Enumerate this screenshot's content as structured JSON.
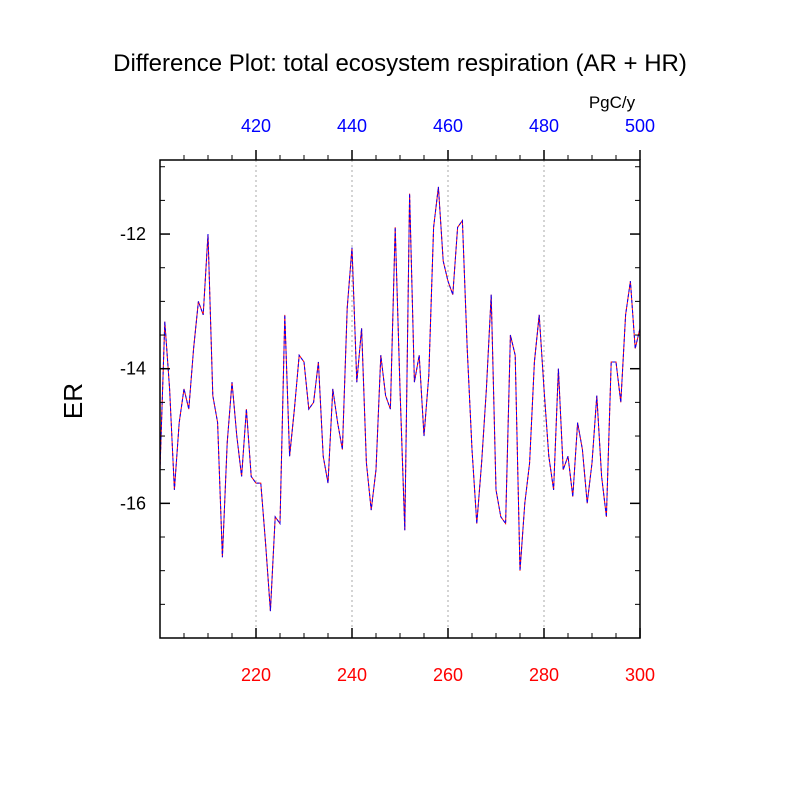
{
  "chart_data": {
    "type": "line",
    "title": "Difference Plot: total ecosystem respiration (AR + HR)",
    "ylabel": "ER",
    "units_label": "PgC/y",
    "xlim": [
      200,
      300
    ],
    "ylim": [
      -18,
      -10.9
    ],
    "bottom_axis": {
      "color": "#ff0000",
      "ticks": [
        220,
        240,
        260,
        280,
        300
      ],
      "labels": [
        "220",
        "240",
        "260",
        "280",
        "300"
      ]
    },
    "top_axis": {
      "color": "#0000ff",
      "ticks": [
        420,
        440,
        460,
        480,
        500
      ],
      "labels": [
        "420",
        "440",
        "460",
        "480",
        "500"
      ],
      "offset": 200
    },
    "y_ticks": [
      -12,
      -14,
      -16
    ],
    "y_tick_labels": [
      "-12",
      "-14",
      "-16"
    ],
    "grid_x": [
      220,
      240,
      260,
      280
    ],
    "series": [
      {
        "line_color": "#ff0000",
        "dash_color": "#0000ff",
        "x": [
          200,
          201,
          202,
          203,
          204,
          205,
          206,
          207,
          208,
          209,
          210,
          211,
          212,
          213,
          214,
          215,
          216,
          217,
          218,
          219,
          220,
          221,
          222,
          223,
          224,
          225,
          226,
          227,
          228,
          229,
          230,
          231,
          232,
          233,
          234,
          235,
          236,
          237,
          238,
          239,
          240,
          241,
          242,
          243,
          244,
          245,
          246,
          247,
          248,
          249,
          250,
          251,
          252,
          253,
          254,
          255,
          256,
          257,
          258,
          259,
          260,
          261,
          262,
          263,
          264,
          265,
          266,
          267,
          268,
          269,
          270,
          271,
          272,
          273,
          274,
          275,
          276,
          277,
          278,
          279,
          280,
          281,
          282,
          283,
          284,
          285,
          286,
          287,
          288,
          289,
          290,
          291,
          292,
          293,
          294,
          295,
          296,
          297,
          298,
          299,
          300
        ],
        "values": [
          -15.5,
          -13.3,
          -14.3,
          -15.8,
          -14.8,
          -14.3,
          -14.6,
          -13.7,
          -13.0,
          -13.2,
          -12.0,
          -14.4,
          -14.8,
          -16.8,
          -15.1,
          -14.2,
          -15.0,
          -15.6,
          -14.6,
          -15.6,
          -15.7,
          -15.7,
          -16.6,
          -17.6,
          -16.2,
          -16.3,
          -13.2,
          -15.3,
          -14.6,
          -13.8,
          -13.9,
          -14.6,
          -14.5,
          -13.9,
          -15.3,
          -15.7,
          -14.3,
          -14.8,
          -15.2,
          -13.1,
          -12.2,
          -14.2,
          -13.4,
          -15.4,
          -16.1,
          -15.5,
          -13.8,
          -14.4,
          -14.6,
          -11.9,
          -14.3,
          -16.4,
          -11.4,
          -14.2,
          -13.8,
          -15.0,
          -14.1,
          -11.9,
          -11.3,
          -12.4,
          -12.7,
          -12.9,
          -11.9,
          -11.8,
          -13.7,
          -15.2,
          -16.3,
          -15.4,
          -14.3,
          -12.9,
          -15.8,
          -16.2,
          -16.3,
          -13.5,
          -13.8,
          -17.0,
          -16.0,
          -15.4,
          -13.9,
          -13.2,
          -14.3,
          -15.3,
          -15.8,
          -14.0,
          -15.5,
          -15.3,
          -15.9,
          -14.8,
          -15.2,
          -16.0,
          -15.4,
          -14.4,
          -15.6,
          -16.2,
          -13.9,
          -13.9,
          -14.5,
          -13.2,
          -12.7,
          -13.7,
          -13.4
        ]
      }
    ]
  }
}
